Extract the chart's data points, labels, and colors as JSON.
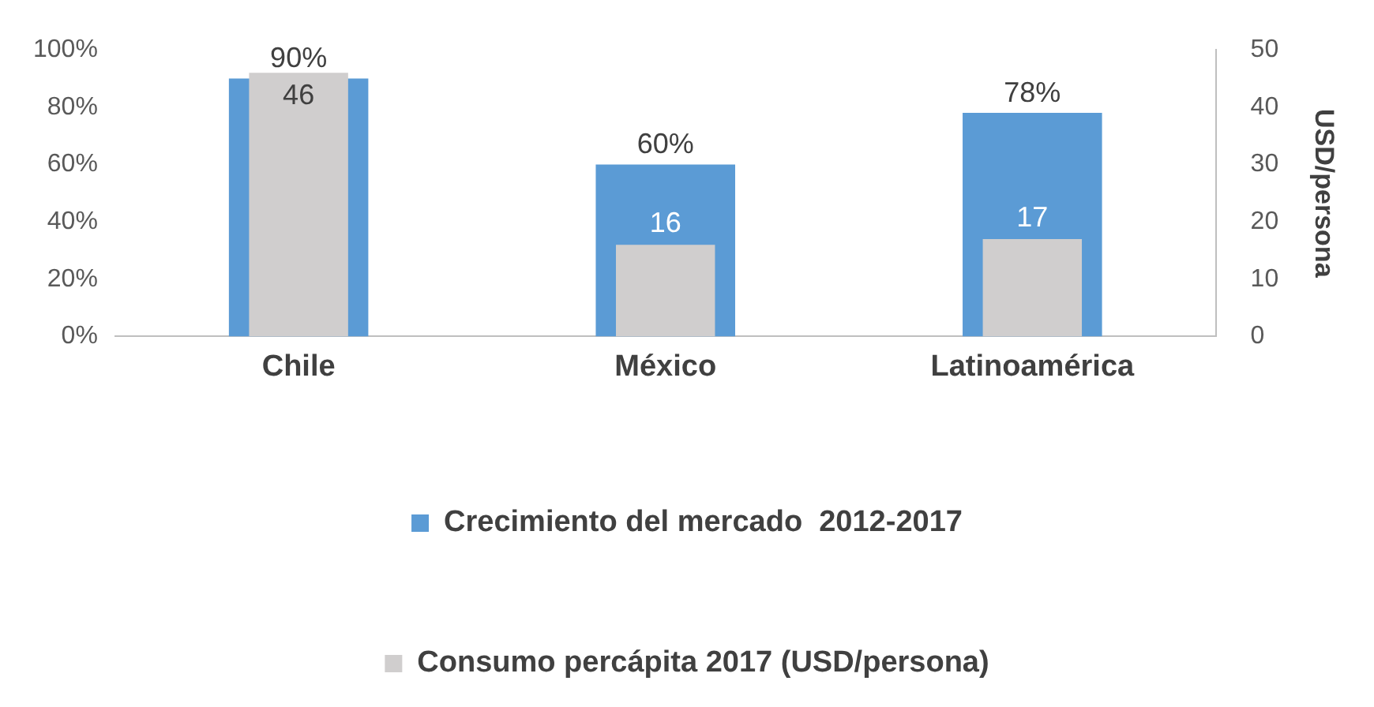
{
  "chart_data": {
    "type": "bar",
    "categories": [
      "Chile",
      "México",
      "Latinoamérica"
    ],
    "series": [
      {
        "name": "Crecimiento del mercado  2012-2017",
        "color": "#5b9bd5",
        "values": [
          90,
          60,
          78
        ],
        "value_labels": [
          "90%",
          "60%",
          "78%"
        ]
      },
      {
        "name": "Consumo percápita 2017 (USD/persona)",
        "color": "#d0cece",
        "values": [
          46,
          16,
          17
        ],
        "value_labels": [
          "46",
          "16",
          "17"
        ],
        "axis": "y2"
      }
    ],
    "ylim": [
      0,
      100
    ],
    "yticks": [
      {
        "value": 0,
        "label": "0%"
      },
      {
        "value": 20,
        "label": "20%"
      },
      {
        "value": 40,
        "label": "40%"
      },
      {
        "value": 60,
        "label": "60%"
      },
      {
        "value": 80,
        "label": "80%"
      },
      {
        "value": 100,
        "label": "100%"
      }
    ],
    "y2lim": [
      0,
      50
    ],
    "y2ticks": [
      0,
      10,
      20,
      30,
      40,
      50
    ],
    "y2label": "USD/persona",
    "grid": false,
    "legend": "bottom"
  }
}
